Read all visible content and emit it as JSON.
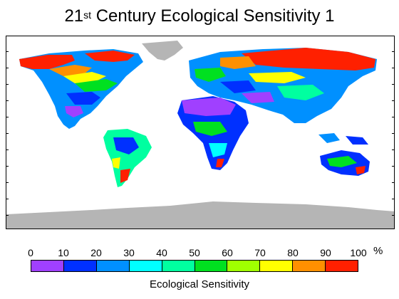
{
  "title": {
    "prefix": "21",
    "superscript": "st",
    "rest": " Century Ecological Sensitivity 1"
  },
  "legend": {
    "label": "Ecological Sensitivity",
    "unit": "%",
    "ticks": [
      "0",
      "10",
      "20",
      "30",
      "40",
      "50",
      "60",
      "70",
      "80",
      "90",
      "100"
    ],
    "colors": [
      "#a040ff",
      "#0030ff",
      "#0090ff",
      "#00ffff",
      "#00ffa0",
      "#00e020",
      "#a0ff00",
      "#ffff00",
      "#ff9000",
      "#ff2000"
    ]
  },
  "map": {
    "ocean_color": "#ffffff",
    "ice_color": "#b5b5b5"
  }
}
